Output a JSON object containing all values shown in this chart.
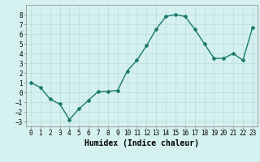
{
  "x": [
    0,
    1,
    2,
    3,
    4,
    5,
    6,
    7,
    8,
    9,
    10,
    11,
    12,
    13,
    14,
    15,
    16,
    17,
    18,
    19,
    20,
    21,
    22,
    23
  ],
  "y": [
    1.0,
    0.5,
    -0.7,
    -1.2,
    -2.8,
    -1.7,
    -0.8,
    0.1,
    0.1,
    0.2,
    2.2,
    3.3,
    4.8,
    6.5,
    7.8,
    8.0,
    7.8,
    6.5,
    5.0,
    3.5,
    3.5,
    4.0,
    3.3,
    6.7
  ],
  "line_color": "#1a7a6e",
  "marker": "D",
  "marker_size": 2.0,
  "bg_color": "#d4f0ef",
  "grid_color": "#b8dcd9",
  "xlabel": "Humidex (Indice chaleur)",
  "ylim": [
    -3.5,
    9.0
  ],
  "xlim": [
    -0.5,
    23.5
  ],
  "yticks": [
    -3,
    -2,
    -1,
    0,
    1,
    2,
    3,
    4,
    5,
    6,
    7,
    8
  ],
  "xticks": [
    0,
    1,
    2,
    3,
    4,
    5,
    6,
    7,
    8,
    9,
    10,
    11,
    12,
    13,
    14,
    15,
    16,
    17,
    18,
    19,
    20,
    21,
    22,
    23
  ],
  "tick_fontsize": 5.5,
  "xlabel_fontsize": 7.0,
  "line_width": 1.0
}
